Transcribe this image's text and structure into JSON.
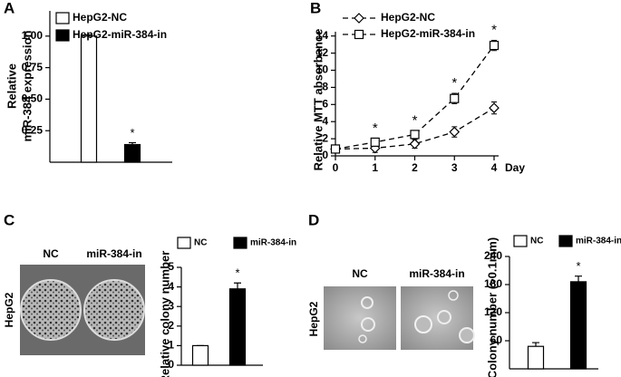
{
  "panel_letters": [
    "A",
    "B",
    "C",
    "D"
  ],
  "images": [
    {
      "side_label": "HepG2",
      "labels": [
        "NC",
        "miR-384-in"
      ]
    },
    {
      "side_label": "HepG2",
      "labels": [
        "NC",
        "miR-384-in"
      ]
    }
  ],
  "chart_data": [
    {
      "type": "bar",
      "ylabel": [
        "Relative",
        "miR-384 expression"
      ],
      "categories": [
        null
      ],
      "series": [
        {
          "name": "HepG2-NC",
          "color": "#ffffff",
          "values": [
            1.0
          ],
          "errors": [
            0.01
          ]
        },
        {
          "name": "HepG2-miR-384-in",
          "color": "#000000",
          "values": [
            0.14
          ],
          "errors": [
            0.015
          ]
        }
      ],
      "annotation": "*",
      "ylim": [
        0,
        1.2
      ],
      "yticks": [
        {
          "value": 0.25,
          "label": "0.25"
        },
        {
          "value": 0.5,
          "label": "0.50"
        },
        {
          "value": 0.75,
          "label": "0.75"
        },
        {
          "value": 1,
          "label": "1.00"
        }
      ]
    },
    {
      "type": "line",
      "ylabel": "Relative MTT absorbance",
      "xlabel": "Day",
      "x": [
        0,
        1,
        2,
        3,
        4
      ],
      "series": [
        {
          "name": "HepG2-NC",
          "color": "#000000",
          "marker": "diamond",
          "values": [
            0.8,
            0.9,
            1.4,
            2.8,
            5.6
          ],
          "errors": [
            0.2,
            0.5,
            0.5,
            0.6,
            0.7
          ]
        },
        {
          "name": "HepG2-miR-384-in",
          "color": "#000000",
          "marker": "square",
          "values": [
            0.8,
            1.6,
            2.5,
            6.7,
            12.9
          ],
          "errors": [
            0.2,
            0.4,
            0.4,
            0.6,
            0.6
          ]
        }
      ],
      "annotations": [
        {
          "x": 1,
          "text": "*"
        },
        {
          "x": 2,
          "text": "*"
        },
        {
          "x": 3,
          "text": "*"
        },
        {
          "x": 4,
          "text": "*"
        }
      ],
      "xlim": [
        0,
        4
      ],
      "xticks": [
        0,
        1,
        2,
        3,
        4
      ],
      "ylim": [
        0,
        14.5
      ],
      "yticks": [
        0,
        2,
        4,
        6,
        8,
        10,
        12,
        14
      ]
    },
    {
      "type": "bar",
      "ylabel": "Relative colony number",
      "categories": [
        null
      ],
      "series": [
        {
          "name": "NC",
          "color": "#ffffff",
          "values": [
            1
          ],
          "errors": [
            0
          ]
        },
        {
          "name": "miR-384-in",
          "color": "#000000",
          "values": [
            3.9
          ],
          "errors": [
            0.3
          ]
        }
      ],
      "annotation": "*",
      "ylim": [
        0,
        5
      ],
      "yticks": [
        0,
        1,
        2,
        3,
        4,
        5
      ]
    },
    {
      "type": "bar",
      "ylabel": "Colony number (>0.1mm)",
      "categories": [
        null
      ],
      "series": [
        {
          "name": "NC",
          "color": "#ffffff",
          "values": [
            48
          ],
          "errors": [
            8
          ]
        },
        {
          "name": "miR-384-in",
          "color": "#000000",
          "values": [
            186
          ],
          "errors": [
            12
          ]
        }
      ],
      "annotation": "*",
      "ylim": [
        0,
        240
      ],
      "yticks": [
        60,
        120,
        180,
        240
      ]
    }
  ]
}
